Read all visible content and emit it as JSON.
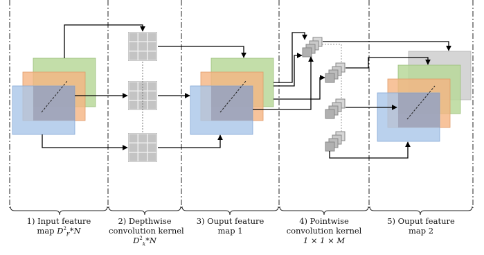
{
  "captions": {
    "c1": {
      "line1": "1) Input feature",
      "line2_prefix": "map ",
      "line2_math": "D",
      "line2_sup": "2",
      "line2_sub": "F",
      "line2_suffix": "*N"
    },
    "c2": {
      "line1": "2) Depthwise",
      "line2": "convolution kernel",
      "line3_math": "D",
      "line3_sup": "2",
      "line3_sub": "k",
      "line3_suffix": "*N"
    },
    "c3": {
      "line1": "3) Ouput feature",
      "line2": "map 1"
    },
    "c4": {
      "line1": "4) Pointwise",
      "line2": "convolution kernel",
      "line3": "1 × 1 × M"
    },
    "c5": {
      "line1": "5) Ouput feature",
      "line2": "map 2"
    }
  },
  "colors": {
    "green": "#b9d89a",
    "orange": "#f5b482",
    "blue": "#a9c6e8",
    "gray_cube": "#b4b4b4",
    "gray_layer": "#d0d0d0"
  }
}
